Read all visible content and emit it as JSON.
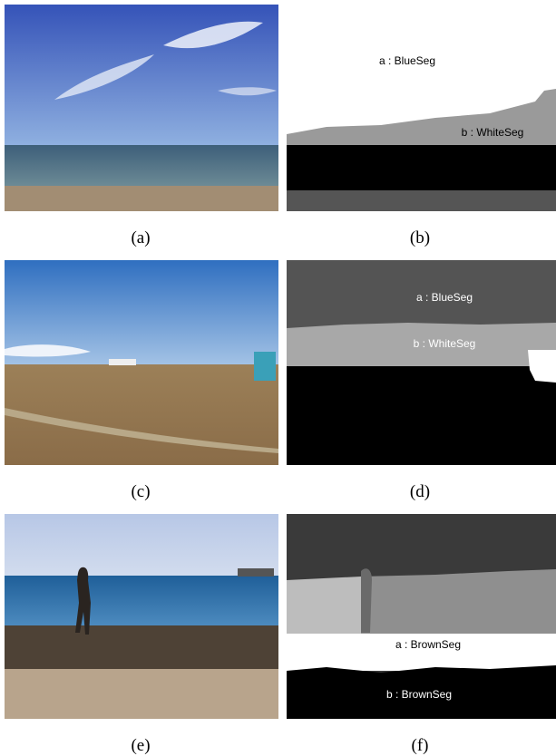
{
  "panels": [
    {
      "caption": "(a)"
    },
    {
      "caption": "(b)",
      "labels": [
        "a : BlueSeg",
        "b : WhiteSeg"
      ]
    },
    {
      "caption": "(c)"
    },
    {
      "caption": "(d)",
      "labels": [
        "a : BlueSeg",
        "b : WhiteSeg"
      ]
    },
    {
      "caption": "(e)"
    },
    {
      "caption": "(f)",
      "labels": [
        "a : BrownSeg",
        "b : BrownSeg"
      ]
    }
  ]
}
